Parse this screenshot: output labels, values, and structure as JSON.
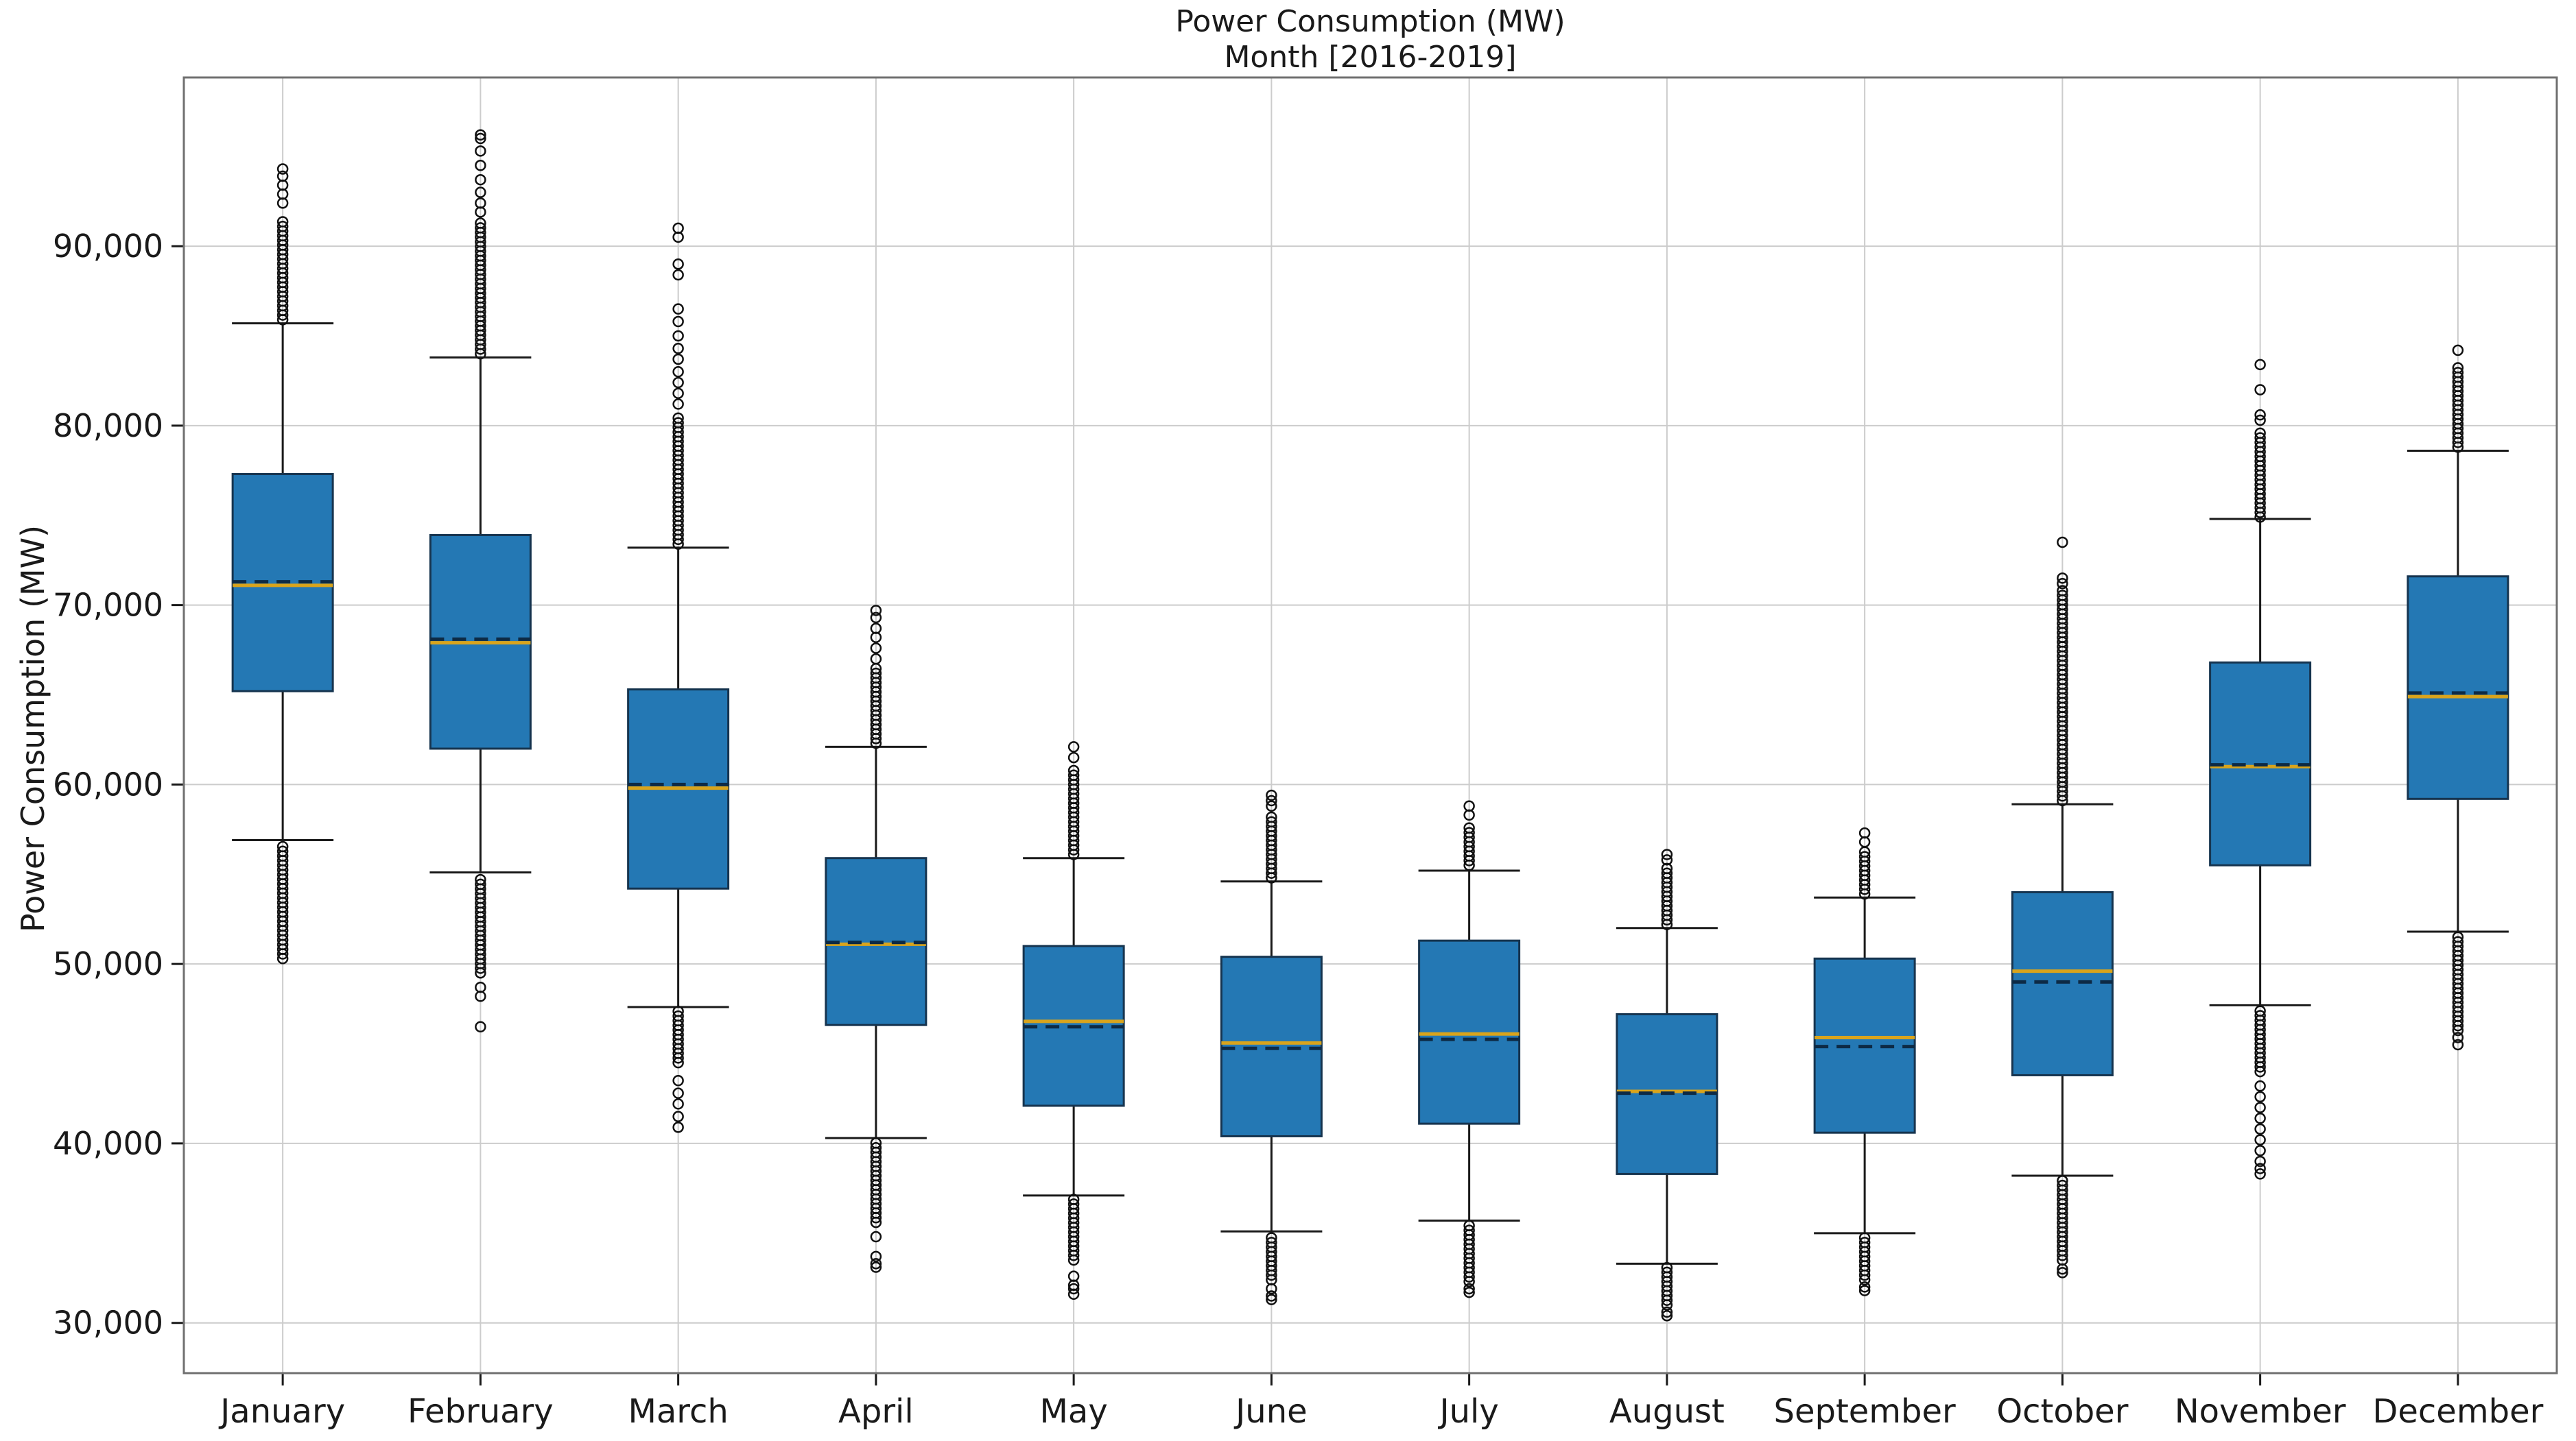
{
  "title": {
    "line1": "Power Consumption (MW)",
    "line2": "Month [2016-2019]"
  },
  "y_axis": {
    "label": "Power Consumption (MW)",
    "tick_labels": [
      "30,000",
      "40,000",
      "50,000",
      "60,000",
      "70,000",
      "80,000",
      "90,000"
    ],
    "tick_values": [
      30000,
      40000,
      50000,
      60000,
      70000,
      80000,
      90000
    ],
    "min": 27200,
    "max": 99400
  },
  "colors": {
    "box_fill": "#2478b4",
    "box_edge": "#16344f",
    "median": "#d9a41c",
    "mean": "#0d2a45",
    "whisker": "#1a1a1a",
    "flier": "#111111",
    "grid": "#cccccc",
    "spine": "#707070",
    "text": "#1a1a1a"
  },
  "chart_data": {
    "type": "boxplot",
    "title": "Power Consumption (MW)\nMonth [2016-2019]",
    "xlabel": "",
    "ylabel": "Power Consumption (MW)",
    "ylim": [
      27200,
      99400
    ],
    "grid": true,
    "categories": [
      "January",
      "February",
      "March",
      "April",
      "May",
      "June",
      "July",
      "August",
      "September",
      "October",
      "November",
      "December"
    ],
    "months": [
      {
        "name": "January",
        "whisker_low": 56900,
        "q1": 65200,
        "median": 71100,
        "mean": 71300,
        "q3": 77300,
        "whisker_high": 85700,
        "outliers_low": {
          "dense_min": 50300,
          "dense_max": 56600,
          "dots": []
        },
        "outliers_high": {
          "dense_min": 85900,
          "dense_max": 91600,
          "dots": [
            92400,
            92900,
            93400,
            93900,
            94300
          ]
        }
      },
      {
        "name": "February",
        "whisker_low": 55100,
        "q1": 62000,
        "median": 67900,
        "mean": 68100,
        "q3": 73900,
        "whisker_high": 83800,
        "outliers_low": {
          "dense_min": 49500,
          "dense_max": 54900,
          "dots": [
            48700,
            48200,
            46500
          ]
        },
        "outliers_high": {
          "dense_min": 84000,
          "dense_max": 91500,
          "dots": [
            91900,
            92400,
            93000,
            93700,
            94500,
            95300,
            96000,
            96200
          ]
        }
      },
      {
        "name": "March",
        "whisker_low": 47600,
        "q1": 54200,
        "median": 59800,
        "mean": 60000,
        "q3": 65300,
        "whisker_high": 73200,
        "outliers_low": {
          "dense_min": 44500,
          "dense_max": 47400,
          "dots": [
            43500,
            42800,
            42200,
            41500,
            40900
          ]
        },
        "outliers_high": {
          "dense_min": 73400,
          "dense_max": 80500,
          "dots": [
            81200,
            81800,
            82400,
            83000,
            83700,
            84300,
            85000,
            85800,
            86500,
            88400,
            89000,
            90500,
            91000
          ]
        }
      },
      {
        "name": "April",
        "whisker_low": 40300,
        "q1": 46600,
        "median": 51100,
        "mean": 51200,
        "q3": 55900,
        "whisker_high": 62100,
        "outliers_low": {
          "dense_min": 35600,
          "dense_max": 40100,
          "dots": [
            34800,
            33700,
            33300,
            33100
          ]
        },
        "outliers_high": {
          "dense_min": 62300,
          "dense_max": 66500,
          "dots": [
            67000,
            67600,
            68200,
            68700,
            69300,
            69700
          ]
        }
      },
      {
        "name": "May",
        "whisker_low": 37100,
        "q1": 42100,
        "median": 46800,
        "mean": 46500,
        "q3": 51000,
        "whisker_high": 55900,
        "outliers_low": {
          "dense_min": 33500,
          "dense_max": 36900,
          "dots": [
            32600,
            32100,
            31900,
            31600
          ]
        },
        "outliers_high": {
          "dense_min": 56100,
          "dense_max": 60900,
          "dots": [
            61500,
            62100
          ]
        }
      },
      {
        "name": "June",
        "whisker_low": 35100,
        "q1": 40400,
        "median": 45600,
        "mean": 45300,
        "q3": 50400,
        "whisker_high": 54600,
        "outliers_low": {
          "dense_min": 32400,
          "dense_max": 34900,
          "dots": [
            31900,
            31500,
            31300
          ]
        },
        "outliers_high": {
          "dense_min": 54800,
          "dense_max": 58300,
          "dots": [
            58800,
            59100,
            59400
          ]
        }
      },
      {
        "name": "July",
        "whisker_low": 35700,
        "q1": 41100,
        "median": 46100,
        "mean": 45800,
        "q3": 51300,
        "whisker_high": 55200,
        "outliers_low": {
          "dense_min": 32300,
          "dense_max": 35500,
          "dots": [
            31900,
            31700
          ]
        },
        "outliers_high": {
          "dense_min": 55500,
          "dense_max": 57800,
          "dots": [
            58300,
            58800
          ]
        }
      },
      {
        "name": "August",
        "whisker_low": 33300,
        "q1": 38300,
        "median": 42900,
        "mean": 42800,
        "q3": 47200,
        "whisker_high": 52000,
        "outliers_low": {
          "dense_min": 31000,
          "dense_max": 33100,
          "dots": [
            30600,
            30400
          ]
        },
        "outliers_high": {
          "dense_min": 52200,
          "dense_max": 55400,
          "dots": [
            55800,
            56100
          ]
        }
      },
      {
        "name": "September",
        "whisker_low": 35000,
        "q1": 40600,
        "median": 45900,
        "mean": 45400,
        "q3": 50300,
        "whisker_high": 53700,
        "outliers_low": {
          "dense_min": 32400,
          "dense_max": 34800,
          "dots": [
            32000,
            31800
          ]
        },
        "outliers_high": {
          "dense_min": 53900,
          "dense_max": 56300,
          "dots": [
            56800,
            57300
          ]
        }
      },
      {
        "name": "October",
        "whisker_low": 38200,
        "q1": 43800,
        "median": 49600,
        "mean": 49000,
        "q3": 54000,
        "whisker_high": 58900,
        "outliers_low": {
          "dense_min": 33500,
          "dense_max": 38000,
          "dots": [
            33000,
            32800
          ]
        },
        "outliers_high": {
          "dense_min": 59100,
          "dense_max": 70800,
          "dots": [
            71200,
            71500,
            73500
          ]
        }
      },
      {
        "name": "November",
        "whisker_low": 47700,
        "q1": 55500,
        "median": 61000,
        "mean": 61100,
        "q3": 66800,
        "whisker_high": 74800,
        "outliers_low": {
          "dense_min": 44000,
          "dense_max": 47600,
          "dots": [
            43200,
            42600,
            42000,
            41400,
            40800,
            40200,
            39600,
            39000,
            38600,
            38300
          ]
        },
        "outliers_high": {
          "dense_min": 74900,
          "dense_max": 79800,
          "dots": [
            80300,
            80600,
            82000,
            83400
          ]
        }
      },
      {
        "name": "December",
        "whisker_low": 51800,
        "q1": 59200,
        "median": 64900,
        "mean": 65100,
        "q3": 71600,
        "whisker_high": 78600,
        "outliers_low": {
          "dense_min": 46300,
          "dense_max": 51700,
          "dots": [
            45900,
            45500
          ]
        },
        "outliers_high": {
          "dense_min": 78800,
          "dense_max": 83300,
          "dots": [
            84200
          ]
        }
      }
    ]
  },
  "layout_note": "boxplot of monthly power consumption, medians orange, means dashed"
}
